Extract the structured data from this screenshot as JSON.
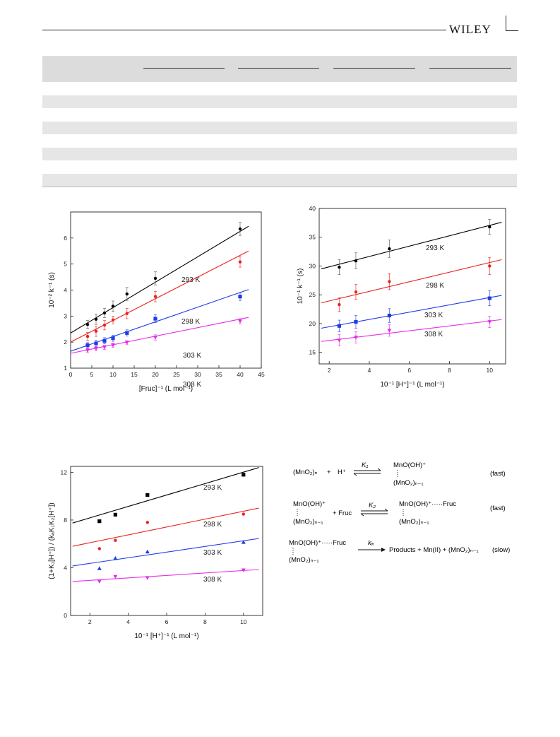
{
  "header": {
    "publisher": "WILEY"
  },
  "chart_data": [
    {
      "type": "scatter",
      "title": "",
      "xlabel": "[Fruc]⁻¹ (L mol⁻¹)",
      "ylabel": "10⁻² k⁻¹ (s)",
      "xlim": [
        0,
        45
      ],
      "ylim": [
        1,
        7
      ],
      "xticks": [
        0,
        5,
        10,
        15,
        20,
        25,
        30,
        35,
        40,
        45
      ],
      "yticks": [
        1,
        2,
        3,
        4,
        5,
        6
      ],
      "error_bars": true,
      "series": [
        {
          "name": "293 K",
          "color": "#000000",
          "marker": "circle",
          "x": [
            4,
            6,
            8,
            10,
            13.3,
            20,
            40
          ],
          "y": [
            2.68,
            2.88,
            3.12,
            3.38,
            3.85,
            4.45,
            6.35
          ],
          "err": [
            0.15,
            0.2,
            0.18,
            0.2,
            0.25,
            0.25,
            0.25
          ],
          "fit": [
            2.35,
            6.45
          ]
        },
        {
          "name": "298 K",
          "color": "#e8211d",
          "marker": "circle",
          "x": [
            4,
            6,
            8,
            10,
            13.3,
            20,
            40
          ],
          "y": [
            2.22,
            2.42,
            2.65,
            2.85,
            3.1,
            3.75,
            5.08
          ],
          "err": [
            0.15,
            0.2,
            0.18,
            0.15,
            0.2,
            0.2,
            0.2
          ],
          "fit": [
            2.0,
            5.5
          ]
        },
        {
          "name": "303 K",
          "color": "#1f3be8",
          "marker": "square",
          "x": [
            4,
            6,
            8,
            10,
            13.3,
            20,
            40
          ],
          "y": [
            1.88,
            1.95,
            2.05,
            2.15,
            2.35,
            2.9,
            3.75
          ],
          "err": [
            0.1,
            0.12,
            0.12,
            0.12,
            0.12,
            0.15,
            0.15
          ],
          "fit": [
            1.65,
            4.02
          ]
        },
        {
          "name": "308 K",
          "color": "#e52de8",
          "marker": "triangle-down",
          "x": [
            4,
            6,
            8,
            10,
            13.3,
            20,
            40
          ],
          "y": [
            1.68,
            1.75,
            1.8,
            1.88,
            1.98,
            2.18,
            2.8
          ],
          "err": [
            0.08,
            0.08,
            0.08,
            0.08,
            0.08,
            0.1,
            0.1
          ],
          "fit": [
            1.57,
            2.95
          ]
        }
      ],
      "labels": [
        "293 K",
        "298 K",
        "303 K",
        "308 K"
      ]
    },
    {
      "type": "scatter",
      "title": "",
      "xlabel": "10⁻¹ [H⁺]⁻¹ (L mol⁻¹)",
      "ylabel": "10⁻¹ k⁻¹ (s)",
      "xlim": [
        1.5,
        10.8
      ],
      "ylim": [
        13,
        40
      ],
      "xticks": [
        2,
        4,
        6,
        8,
        10
      ],
      "yticks": [
        15,
        20,
        25,
        30,
        35,
        40
      ],
      "error_bars": true,
      "series": [
        {
          "name": "293 K",
          "color": "#000000",
          "marker": "circle",
          "x": [
            2.5,
            3.33,
            5,
            10
          ],
          "y": [
            29.8,
            30.9,
            33.0,
            36.8
          ],
          "err": [
            1.3,
            1.4,
            1.5,
            1.3
          ],
          "fit": [
            29.5,
            37.6
          ]
        },
        {
          "name": "298 K",
          "color": "#e8211d",
          "marker": "circle",
          "x": [
            2.5,
            3.33,
            5,
            10
          ],
          "y": [
            23.3,
            25.5,
            27.3,
            30.0
          ],
          "err": [
            1.2,
            1.3,
            1.4,
            1.5
          ],
          "fit": [
            23.6,
            31.1
          ]
        },
        {
          "name": "303 K",
          "color": "#1f3be8",
          "marker": "square",
          "x": [
            2.5,
            3.33,
            5,
            10
          ],
          "y": [
            19.6,
            20.3,
            21.4,
            24.4
          ],
          "err": [
            1.0,
            1.1,
            1.2,
            1.3
          ],
          "fit": [
            19.2,
            24.9
          ]
        },
        {
          "name": "308 K",
          "color": "#e52de8",
          "marker": "triangle-down",
          "x": [
            2.5,
            3.33,
            5,
            10
          ],
          "y": [
            17.1,
            17.6,
            18.8,
            20.3
          ],
          "err": [
            1.0,
            1.0,
            1.0,
            1.0
          ],
          "fit": [
            16.9,
            20.7
          ]
        }
      ],
      "labels": [
        "293 K",
        "298 K",
        "303 K",
        "308 K"
      ]
    },
    {
      "type": "scatter",
      "title": "",
      "xlabel": "10⁻¹ [H⁺]⁻¹ (L mol⁻¹)",
      "ylabel": "(1+K₁[H⁺]) / (kₐK₁K₂[H⁺])",
      "xlim": [
        1,
        11
      ],
      "ylim": [
        0,
        12.5
      ],
      "xticks": [
        2,
        4,
        6,
        8,
        10
      ],
      "yticks": [
        0,
        4,
        8,
        12
      ],
      "error_bars": false,
      "series": [
        {
          "name": "293 K",
          "color": "#000000",
          "marker": "square",
          "x": [
            2.5,
            3.33,
            5,
            10
          ],
          "y": [
            7.9,
            8.45,
            10.1,
            11.8
          ],
          "fit": [
            7.75,
            12.4
          ]
        },
        {
          "name": "298 K",
          "color": "#e8211d",
          "marker": "circle",
          "x": [
            2.5,
            3.33,
            5,
            10
          ],
          "y": [
            5.6,
            6.3,
            7.8,
            8.5
          ],
          "fit": [
            5.8,
            9.0
          ]
        },
        {
          "name": "303 K",
          "color": "#1f3be8",
          "marker": "triangle-up",
          "x": [
            2.5,
            3.33,
            5,
            10
          ],
          "y": [
            3.95,
            4.8,
            5.35,
            6.15
          ],
          "fit": [
            4.15,
            6.45
          ]
        },
        {
          "name": "308 K",
          "color": "#e52de8",
          "marker": "triangle-down",
          "x": [
            2.5,
            3.33,
            5,
            10
          ],
          "y": [
            2.85,
            3.25,
            3.15,
            3.8
          ],
          "fit": [
            2.85,
            3.85
          ]
        }
      ],
      "labels": [
        "293 K",
        "298 K",
        "303 K",
        "308 K"
      ]
    }
  ],
  "scheme": {
    "step1": {
      "reactant": "(MnO₂)ₙ",
      "plus": "+",
      "reagent": "H⁺",
      "constant": "K₁",
      "product_top": "MnO(OH)⁺",
      "product_bottom": "(MnO₂)ₙ₋₁",
      "rate": "(fast)"
    },
    "step2": {
      "reactant_top": "MnO(OH)⁺",
      "reactant_bottom": "(MnO₂)ₙ₋₁",
      "plus_reagent": "+ Fruc",
      "constant": "K₂",
      "product_top": "MnO(OH)⁺·····Fruc",
      "product_bottom": "(MnO₂)ₙ₋₁",
      "rate": "(fast)"
    },
    "step3": {
      "reactant_top": "MnO(OH)⁺·····Fruc",
      "reactant_bottom": "(MnO₂)ₙ₋₁",
      "constant": "kₐ",
      "products": "Products + Mn(II) + (MnO₂)ₙ₋₁",
      "rate": "(slow)"
    }
  }
}
